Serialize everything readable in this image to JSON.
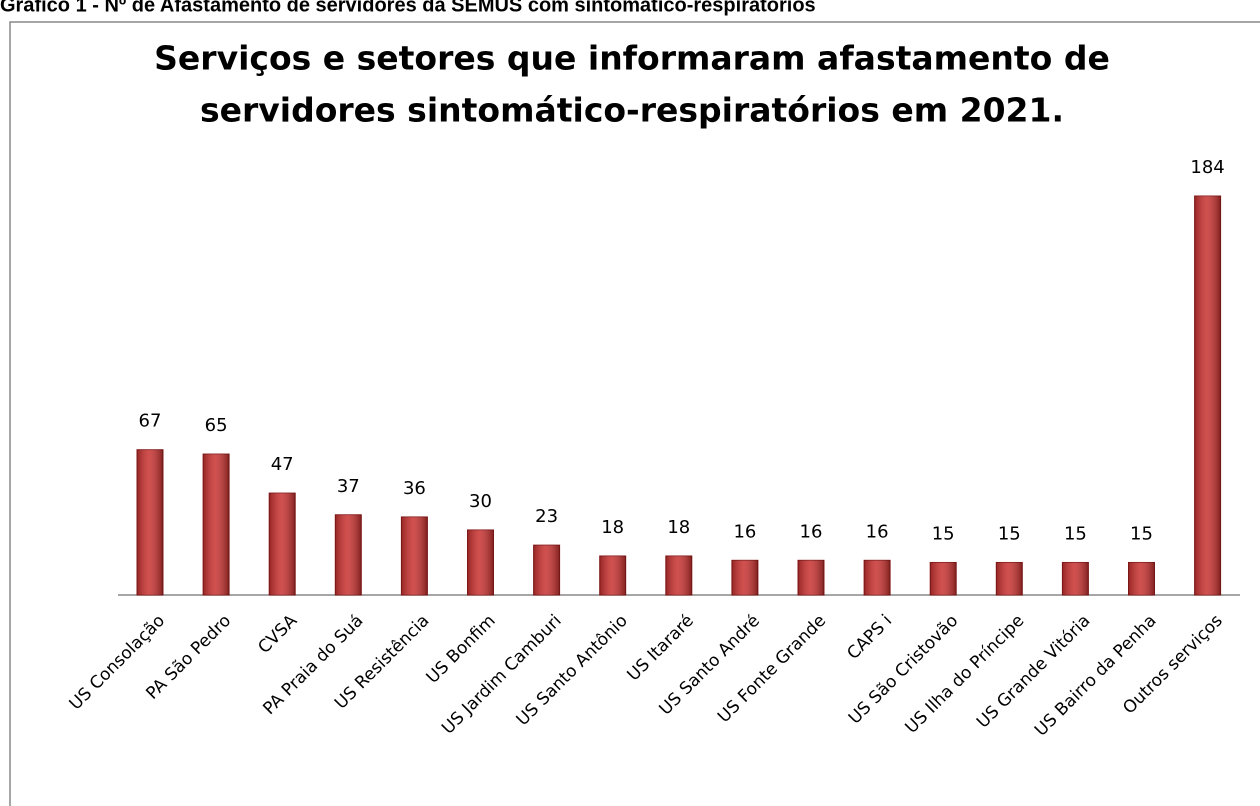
{
  "caption": "Gráfico 1 - Nº de Afastamento de servidores da SEMUS com sintomático-respiratórios",
  "chart_data": {
    "type": "bar",
    "title": [
      "Serviços e setores que informaram afastamento de",
      "servidores sintomático-respiratórios em 2021."
    ],
    "categories": [
      "US Consolação",
      "PA São Pedro",
      "CVSA",
      "PA Praia do Suá",
      "US Resistência",
      "US Bonfim",
      "US Jardim Camburi",
      "US Santo Antônio",
      "US Itararé",
      "US Santo André",
      "US Fonte Grande",
      "CAPS i",
      "US São Cristovão",
      "US Ilha do Príncipe",
      "US Grande Vitória",
      "US Bairro da Penha",
      "Outros serviços"
    ],
    "values": [
      67,
      65,
      47,
      37,
      36,
      30,
      23,
      18,
      18,
      16,
      16,
      16,
      15,
      15,
      15,
      15,
      184
    ],
    "color": "#c8312f"
  }
}
